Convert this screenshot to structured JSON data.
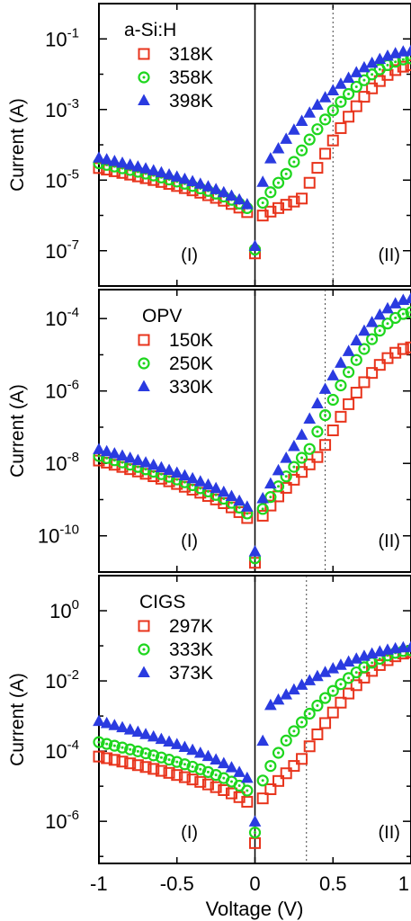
{
  "chart_data": [
    {
      "type": "scatter",
      "panel_label": "a-Si:H",
      "ylabel": "Current (A)",
      "yscale": "log",
      "ylim_exp": [
        -8,
        0
      ],
      "yticks": [
        {
          "base": "10",
          "exp": "-1"
        },
        {
          "base": "10",
          "exp": "-3"
        },
        {
          "base": "10",
          "exp": "-5"
        },
        {
          "base": "10",
          "exp": "-7"
        }
      ],
      "xlim": [
        -1,
        1
      ],
      "dashed_x": 0.5,
      "regions": [
        "(I)",
        "(II)"
      ],
      "series": [
        {
          "name": "318K",
          "marker": "square",
          "color": "#e8341c",
          "Ileft": 2.2e-05,
          "Imin": 7e-07,
          "Vk": 0.3,
          "Ik": 3e-06,
          "Imax": 0.018
        },
        {
          "name": "358K",
          "marker": "circle",
          "color": "#1ed61e",
          "Ileft": 3e-05,
          "Imin": 9e-07,
          "Vk": 0.2,
          "Ik": 1.5e-05,
          "Imax": 0.028
        },
        {
          "name": "398K",
          "marker": "triangle",
          "color": "#2a3be0",
          "Ileft": 4.2e-05,
          "Imin": 1.1e-06,
          "Vk": 0.1,
          "Ik": 4e-05,
          "Imax": 0.045
        }
      ]
    },
    {
      "type": "scatter",
      "panel_label": "OPV",
      "ylabel": "Current (A)",
      "yscale": "log",
      "ylim_exp": [
        -11,
        -3.2
      ],
      "yticks": [
        {
          "base": "10",
          "exp": "-4"
        },
        {
          "base": "10",
          "exp": "-6"
        },
        {
          "base": "10",
          "exp": "-8"
        },
        {
          "base": "10",
          "exp": "-10"
        }
      ],
      "xlim": [
        -1,
        1
      ],
      "dashed_x": 0.45,
      "regions": [
        "(I)",
        "(II)"
      ],
      "series": [
        {
          "name": "150K",
          "marker": "square",
          "color": "#e8341c",
          "Ileft": 1.2e-08,
          "Imin": 1.5e-10,
          "Vk": 0.42,
          "Ik": 1.8e-08,
          "Imax": 1.6e-05
        },
        {
          "name": "250K",
          "marker": "circle",
          "color": "#1ed61e",
          "Ileft": 1.6e-08,
          "Imin": 2e-10,
          "Vk": 0.35,
          "Ik": 2.5e-08,
          "Imax": 0.00015
        },
        {
          "name": "330K",
          "marker": "triangle",
          "color": "#2a3be0",
          "Ileft": 2.4e-08,
          "Imin": 3e-10,
          "Vk": 0.3,
          "Ik": 6e-08,
          "Imax": 0.00035
        }
      ]
    },
    {
      "type": "scatter",
      "panel_label": "CIGS",
      "ylabel": "Current (A)",
      "yscale": "log",
      "ylim_exp": [
        -7.2,
        1
      ],
      "yticks": [
        {
          "base": "10",
          "exp": "0"
        },
        {
          "base": "10",
          "exp": "-2"
        },
        {
          "base": "10",
          "exp": "-4"
        },
        {
          "base": "10",
          "exp": "-6"
        }
      ],
      "xlim": [
        -1,
        1
      ],
      "dashed_x": 0.33,
      "regions": [
        "(I)",
        "(II)"
      ],
      "series": [
        {
          "name": "297K",
          "marker": "square",
          "color": "#e8341c",
          "Ileft": 7e-05,
          "Imin": 2e-06,
          "Vk": 0.3,
          "Ik": 6e-05,
          "Imax": 0.065
        },
        {
          "name": "333K",
          "marker": "circle",
          "color": "#1ed61e",
          "Ileft": 0.00018,
          "Imin": 4e-06,
          "Vk": 0.2,
          "Ik": 0.0002,
          "Imax": 0.075
        },
        {
          "name": "373K",
          "marker": "triangle",
          "color": "#2a3be0",
          "Ileft": 0.0007,
          "Imin": 8e-06,
          "Vk": 0.1,
          "Ik": 0.002,
          "Imax": 0.09
        }
      ]
    }
  ],
  "xaxis": {
    "label": "Voltage (V)",
    "ticks": [
      {
        "value": -1,
        "label": "-1"
      },
      {
        "value": -0.5,
        "label": "-0.5"
      },
      {
        "value": 0,
        "label": "0"
      },
      {
        "value": 0.5,
        "label": "0.5"
      },
      {
        "value": 1,
        "label": "1"
      }
    ]
  }
}
